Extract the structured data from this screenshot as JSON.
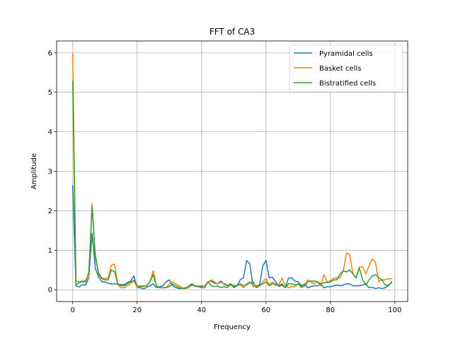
{
  "chart_data": {
    "type": "line",
    "title": "FFT of CA3",
    "xlabel": "Frequency",
    "ylabel": "Amplitude",
    "xlim": [
      -5,
      104
    ],
    "ylim": [
      -0.3,
      6.3
    ],
    "xticks": [
      0,
      20,
      40,
      60,
      80,
      100
    ],
    "yticks": [
      0,
      1,
      2,
      3,
      4,
      5,
      6
    ],
    "grid": true,
    "legend_position": "top-right",
    "x": [
      0,
      1,
      2,
      3,
      4,
      5,
      6,
      7,
      8,
      9,
      10,
      11,
      12,
      13,
      14,
      15,
      16,
      17,
      18,
      19,
      20,
      21,
      22,
      23,
      24,
      25,
      26,
      27,
      28,
      29,
      30,
      31,
      32,
      33,
      34,
      35,
      36,
      37,
      38,
      39,
      40,
      41,
      42,
      43,
      44,
      45,
      46,
      47,
      48,
      49,
      50,
      51,
      52,
      53,
      54,
      55,
      56,
      57,
      58,
      59,
      60,
      61,
      62,
      63,
      64,
      65,
      66,
      67,
      68,
      69,
      70,
      71,
      72,
      73,
      74,
      75,
      76,
      77,
      78,
      79,
      80,
      81,
      82,
      83,
      84,
      85,
      86,
      87,
      88,
      89,
      90,
      91,
      92,
      93,
      94,
      95,
      96,
      97,
      98,
      99
    ],
    "series": [
      {
        "name": "Pyramidal cells",
        "color": "#1f77b4",
        "values": [
          2.63,
          0.1,
          0.07,
          0.13,
          0.12,
          0.3,
          1.43,
          0.55,
          0.33,
          0.2,
          0.2,
          0.16,
          0.15,
          0.15,
          0.14,
          0.13,
          0.13,
          0.18,
          0.22,
          0.35,
          0.05,
          0.05,
          0.02,
          0.06,
          0.1,
          0.15,
          0.05,
          0.08,
          0.1,
          0.2,
          0.25,
          0.1,
          0.05,
          0.03,
          0.03,
          0.05,
          0.05,
          0.12,
          0.1,
          0.08,
          0.08,
          0.1,
          0.2,
          0.22,
          0.17,
          0.15,
          0.22,
          0.14,
          0.1,
          0.15,
          0.08,
          0.1,
          0.25,
          0.3,
          0.74,
          0.65,
          0.08,
          0.1,
          0.12,
          0.6,
          0.74,
          0.3,
          0.32,
          0.2,
          0.08,
          0.12,
          0.05,
          0.3,
          0.3,
          0.22,
          0.2,
          0.1,
          0.15,
          0.05,
          0.08,
          0.1,
          0.1,
          0.15,
          0.05,
          0.08,
          0.07,
          0.1,
          0.12,
          0.1,
          0.12,
          0.15,
          0.15,
          0.1,
          0.1,
          0.1,
          0.12,
          0.15,
          0.05,
          0.06,
          0.03,
          0.05,
          0.03,
          0.05,
          0.1,
          0.2
        ]
      },
      {
        "name": "Basket cells",
        "color": "#ff7f0e",
        "values": [
          5.97,
          0.22,
          0.2,
          0.22,
          0.23,
          0.3,
          2.18,
          0.8,
          0.45,
          0.3,
          0.28,
          0.3,
          0.62,
          0.65,
          0.12,
          0.05,
          0.05,
          0.1,
          0.15,
          0.25,
          0.05,
          0.1,
          0.1,
          0.1,
          0.2,
          0.48,
          0.1,
          0.05,
          0.05,
          0.05,
          0.15,
          0.2,
          0.15,
          0.1,
          0.05,
          0.03,
          0.05,
          0.15,
          0.1,
          0.1,
          0.1,
          0.1,
          0.18,
          0.25,
          0.2,
          0.15,
          0.18,
          0.16,
          0.12,
          0.1,
          0.12,
          0.1,
          0.13,
          0.05,
          0.15,
          0.2,
          0.1,
          0.08,
          0.1,
          0.2,
          0.28,
          0.12,
          0.2,
          0.1,
          0.12,
          0.3,
          0.1,
          0.05,
          0.08,
          0.08,
          0.15,
          0.05,
          0.1,
          0.25,
          0.2,
          0.15,
          0.2,
          0.1,
          0.38,
          0.2,
          0.22,
          0.3,
          0.3,
          0.3,
          0.48,
          0.93,
          0.88,
          0.4,
          0.3,
          0.58,
          0.58,
          0.4,
          0.6,
          0.78,
          0.7,
          0.2,
          0.25,
          0.25,
          0.28,
          0.28
        ]
      },
      {
        "name": "Bistratified cells",
        "color": "#2ca02c",
        "values": [
          5.28,
          0.12,
          0.18,
          0.2,
          0.2,
          0.45,
          2.1,
          0.9,
          0.4,
          0.28,
          0.25,
          0.25,
          0.5,
          0.45,
          0.15,
          0.1,
          0.1,
          0.15,
          0.2,
          0.22,
          0.1,
          0.08,
          0.08,
          0.1,
          0.2,
          0.38,
          0.1,
          0.05,
          0.05,
          0.05,
          0.08,
          0.15,
          0.1,
          0.05,
          0.03,
          0.03,
          0.1,
          0.15,
          0.08,
          0.08,
          0.05,
          0.05,
          0.2,
          0.1,
          0.08,
          0.1,
          0.05,
          0.08,
          0.05,
          0.15,
          0.05,
          0.1,
          0.15,
          0.1,
          0.12,
          0.18,
          0.2,
          0.05,
          0.1,
          0.15,
          0.2,
          0.1,
          0.15,
          0.15,
          0.1,
          0.15,
          0.05,
          0.15,
          0.15,
          0.12,
          0.15,
          0.08,
          0.1,
          0.2,
          0.22,
          0.22,
          0.2,
          0.15,
          0.18,
          0.18,
          0.2,
          0.25,
          0.25,
          0.4,
          0.48,
          0.45,
          0.5,
          0.4,
          0.3,
          0.55,
          0.25,
          0.12,
          0.25,
          0.35,
          0.38,
          0.3,
          0.25,
          0.12,
          0.12,
          0.18
        ]
      }
    ]
  }
}
